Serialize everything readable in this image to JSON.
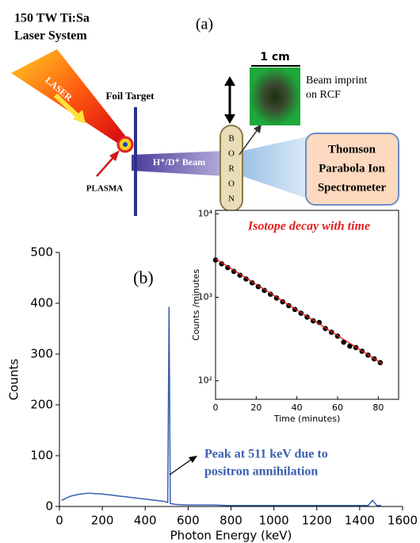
{
  "diagram": {
    "panel": "(a)",
    "system": [
      "150 TW Ti:Sa",
      "Laser System"
    ],
    "laser": "LASER",
    "foil": "Foil Target",
    "plasma": "PLASMA",
    "beam": "H⁺/D⁺ Beam",
    "boron": [
      "B",
      "O",
      "R",
      "O",
      "N"
    ],
    "scale": "1 cm",
    "imprint": [
      "Beam imprint",
      "on RCF"
    ],
    "spectrometer": [
      "Thomson",
      "Parabola Ion",
      "Spectrometer"
    ]
  },
  "chart_data": [
    {
      "type": "line",
      "panel_label": "(b)",
      "x_label": "Photon Energy (keV)",
      "y_label": "Counts",
      "annotation": [
        "Peak at 511 keV due to",
        "positron annihilation"
      ],
      "x": [
        10,
        30,
        50,
        70,
        90,
        110,
        130,
        150,
        170,
        190,
        210,
        230,
        250,
        270,
        290,
        310,
        330,
        350,
        370,
        390,
        410,
        430,
        450,
        470,
        490,
        505,
        511,
        517,
        540,
        600,
        660,
        720,
        780,
        840,
        900,
        960,
        1020,
        1080,
        1140,
        1200,
        1260,
        1320,
        1380,
        1440,
        1460,
        1480,
        1500
      ],
      "series": [
        {
          "color": "#3a5fb0",
          "values": [
            12,
            16,
            20,
            22,
            24,
            25,
            26,
            26,
            25,
            25,
            24,
            23,
            22,
            21,
            20,
            19,
            18,
            17,
            16,
            15,
            14,
            13,
            12,
            11,
            10,
            8,
            393,
            6,
            4,
            3,
            3,
            3,
            2,
            2,
            2,
            2,
            2,
            2,
            2,
            2,
            2,
            2,
            2,
            2,
            12,
            2,
            2
          ]
        }
      ],
      "xlim": [
        0,
        1600
      ],
      "xticks": [
        0,
        200,
        400,
        600,
        800,
        1000,
        1200,
        1400,
        1600
      ],
      "ylim": [
        0,
        500
      ],
      "yticks": [
        0,
        100,
        200,
        300,
        400,
        500
      ]
    },
    {
      "type": "scatter",
      "title": "Isotope decay with time",
      "x_label": "Time (minutes)",
      "y_label": "Counts /minutes",
      "log_y": true,
      "series": [
        {
          "color": "#000000",
          "x": [
            0,
            3,
            6,
            9,
            12,
            15,
            18,
            21,
            24,
            27,
            30,
            33,
            36,
            39,
            42,
            45,
            48,
            51,
            54,
            57,
            60,
            63,
            66,
            69,
            72,
            75,
            78,
            81
          ],
          "values": [
            2800,
            2521,
            2270,
            2044,
            1840,
            1657,
            1492,
            1343,
            1209,
            1089,
            980,
            883,
            795,
            716,
            644,
            580,
            522,
            500,
            423,
            381,
            343,
            290,
            260,
            250,
            226,
            203,
            183,
            165
          ]
        },
        {
          "color": "#e02020",
          "x": [
            0,
            82
          ],
          "values": [
            2900,
            160
          ]
        }
      ],
      "xlim": [
        0,
        90
      ],
      "xticks": [
        0,
        20,
        40,
        60,
        80
      ],
      "ylim": [
        60,
        11000
      ],
      "yticks": [
        {
          "value": 100,
          "label": "10²"
        },
        {
          "value": 1000,
          "label": "10³"
        },
        {
          "value": 10000,
          "label": "10⁴"
        }
      ]
    }
  ]
}
